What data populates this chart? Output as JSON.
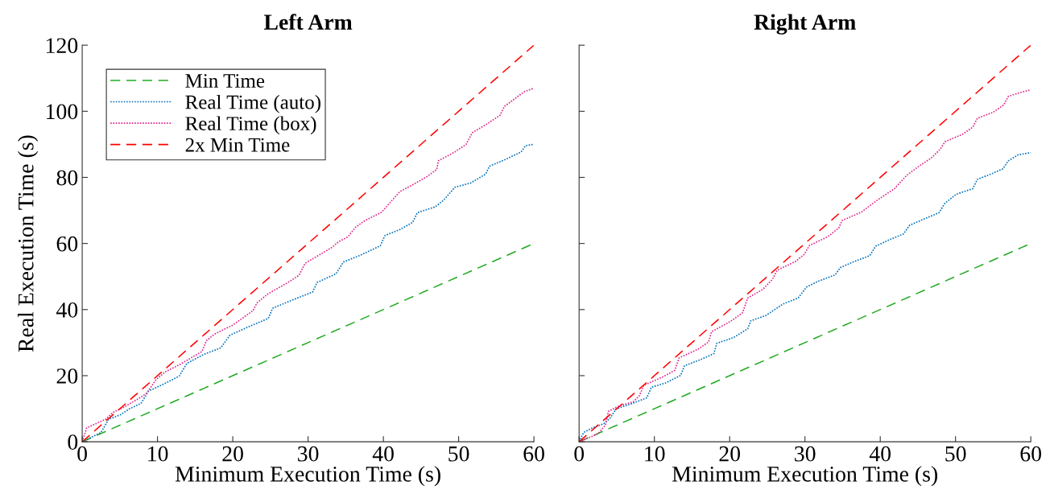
{
  "chart_data": [
    {
      "type": "line",
      "title": "Left Arm",
      "xlabel": "Minimum Execution Time (s)",
      "ylabel": "Real Execution Time (s)",
      "xlim": [
        0,
        60
      ],
      "ylim": [
        0,
        120
      ],
      "xticks": [
        0,
        10,
        20,
        30,
        40,
        50,
        60
      ],
      "yticks": [
        0,
        20,
        40,
        60,
        80,
        100,
        120
      ],
      "grid": false,
      "legend": "top left",
      "marker": "none",
      "series": [
        {
          "name": "Min Time",
          "color": "#22aa22",
          "line_style": "dashed",
          "x": [
            0,
            60
          ],
          "values": [
            0,
            60
          ]
        },
        {
          "name": "Real Time (auto)",
          "color": "#0072bd",
          "line_style": "dotted",
          "x": [
            0,
            2.5,
            3.5,
            5.1,
            6.3,
            7.8,
            8.8,
            11.4,
            12.9,
            13.9,
            16.1,
            18.4,
            19.6,
            22,
            24.7,
            25.3,
            27.8,
            30.6,
            31.2,
            33.7,
            34.7,
            36.9,
            39.6,
            40.2,
            42.2,
            43.9,
            44.5,
            46.9,
            48,
            49.5,
            51.6,
            53.6,
            54.1,
            56.3,
            58.3,
            58.9,
            60
          ],
          "values": [
            0,
            2.8,
            6.8,
            8.2,
            10,
            11.6,
            15.3,
            18.1,
            19.9,
            23.7,
            26.4,
            28.4,
            32.2,
            34.7,
            37.3,
            40.4,
            42.8,
            45.3,
            48.2,
            50.8,
            54.4,
            56.4,
            59.3,
            62.4,
            64.2,
            66.4,
            69.3,
            71.1,
            73.1,
            77,
            78.3,
            81,
            83.4,
            85.5,
            87.7,
            89.6,
            90
          ]
        },
        {
          "name": "Real Time (box)",
          "color": "#e0268c",
          "line_style": "dotted",
          "x": [
            0,
            0.6,
            3.1,
            4.1,
            5.5,
            7.8,
            8.6,
            9.8,
            11,
            12.9,
            15.9,
            16.5,
            17.6,
            20,
            22.7,
            23.2,
            24.7,
            27.5,
            28.8,
            29.6,
            31.4,
            33.1,
            34.1,
            35.3,
            36.3,
            37.6,
            39.8,
            40.4,
            42.2,
            44,
            45.7,
            47.1,
            47.3,
            49.5,
            51,
            51.8,
            53.8,
            55.5,
            56.1,
            58.7,
            60
          ],
          "values": [
            0,
            4.2,
            6.8,
            8.9,
            10.4,
            13.5,
            14.8,
            18.8,
            21.1,
            23.3,
            27.3,
            30.6,
            32.6,
            35.3,
            39.7,
            42,
            44.8,
            48.4,
            50.4,
            54,
            56.4,
            58.7,
            60.6,
            62,
            64.9,
            67,
            69.5,
            71.1,
            75.7,
            77.9,
            80.1,
            82.4,
            85,
            87.7,
            90,
            93.5,
            96.2,
            98.8,
            101.5,
            105.9,
            107
          ]
        },
        {
          "name": "2x Min Time",
          "color": "#ff0000",
          "line_style": "dashed",
          "x": [
            0,
            60
          ],
          "values": [
            0,
            120
          ]
        }
      ]
    },
    {
      "type": "line",
      "title": "Right Arm",
      "xlabel": "Minimum Execution Time (s)",
      "xlim": [
        0,
        60
      ],
      "ylim": [
        0,
        120
      ],
      "xticks": [
        0,
        10,
        20,
        30,
        40,
        50,
        60
      ],
      "yticks": [
        0,
        20,
        40,
        60,
        80,
        100,
        120
      ],
      "grid": false,
      "legend": false,
      "marker": "none",
      "tick_labels": "x",
      "series": [
        {
          "color": "#22aa22",
          "line_style": "dashed",
          "x": [
            0,
            60
          ],
          "values": [
            0,
            60
          ]
        },
        {
          "color": "#0072bd",
          "line_style": "dotted",
          "x": [
            0,
            0.6,
            1.8,
            3.3,
            4.1,
            4.9,
            7.2,
            9,
            9.6,
            11.5,
            13.5,
            14,
            16.2,
            17.9,
            18.3,
            20.5,
            22.4,
            22.8,
            24.8,
            27.1,
            29.1,
            30.2,
            31.8,
            34,
            34.7,
            36.5,
            38.6,
            39.4,
            41.2,
            43.1,
            43.9,
            45.5,
            47.8,
            48.6,
            50.1,
            52.3,
            52.9,
            54.8,
            56.3,
            57,
            58.3,
            60
          ],
          "values": [
            0,
            2.8,
            4.2,
            5.5,
            7.1,
            9.9,
            11.7,
            13.3,
            16.5,
            17.8,
            20.1,
            23,
            24.9,
            26.7,
            29.8,
            31.5,
            34.2,
            36.6,
            38.2,
            41.7,
            43.5,
            46.8,
            48.6,
            50.5,
            52.7,
            54.5,
            56.3,
            59.2,
            61.1,
            62.9,
            65.5,
            67.1,
            69.3,
            72.2,
            74.9,
            76.6,
            79.4,
            81.1,
            82.6,
            85,
            86.8,
            87.5
          ]
        },
        {
          "color": "#e0268c",
          "line_style": "dotted",
          "x": [
            0,
            2.5,
            3.5,
            3.9,
            5.3,
            7.2,
            8,
            8.6,
            11.1,
            12.7,
            13.3,
            15.8,
            17.2,
            17.6,
            20.1,
            21.7,
            22.4,
            24.4,
            25.7,
            26.3,
            28.7,
            29.9,
            30.6,
            33,
            34.5,
            34.9,
            37.5,
            39.6,
            41.9,
            43.5,
            45.1,
            46.8,
            48,
            48.6,
            50.9,
            52.3,
            52.9,
            55,
            56.4,
            57,
            58.8,
            60
          ],
          "values": [
            0,
            2.4,
            5,
            9.2,
            10.8,
            12.1,
            13.9,
            17.1,
            19.6,
            21.6,
            25.4,
            28,
            30.2,
            33.3,
            36.4,
            39,
            43.5,
            46.1,
            49.2,
            51.9,
            54.5,
            56.7,
            59.4,
            62,
            64.7,
            66.9,
            69.5,
            73.1,
            76.6,
            80.6,
            83.3,
            85.9,
            88.6,
            90.8,
            93,
            95.2,
            97.9,
            99.7,
            101.9,
            104.5,
            105.8,
            106.5
          ]
        },
        {
          "color": "#ff0000",
          "line_style": "dashed",
          "x": [
            0,
            60
          ],
          "values": [
            0,
            120
          ]
        }
      ]
    }
  ]
}
